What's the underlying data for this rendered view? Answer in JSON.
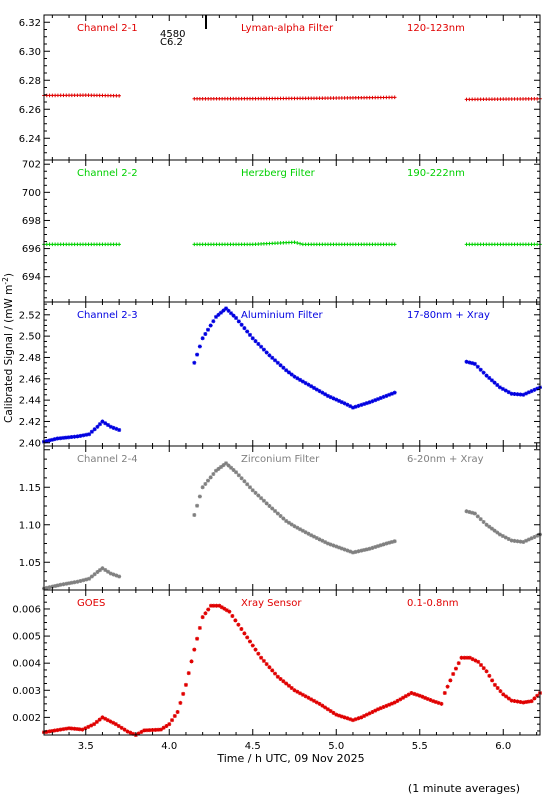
{
  "figure": {
    "ylabel": "Calibrated Signal / (mW m",
    "ylabel_sup": "-2",
    "ylabel_close": ")",
    "xlabel": "Time / h UTC, 09 Nov 2025",
    "footnote": "(1 minute averages)",
    "x_ticks": [
      "3.5",
      "4.0",
      "4.5",
      "5.0",
      "5.5",
      "6.0"
    ],
    "event": {
      "time": 4.22,
      "number": "4580",
      "class": "C6.2"
    }
  },
  "chart_data": [
    {
      "type": "scatter",
      "labels": [
        "Channel 2-1",
        "Lyman-alpha Filter",
        "120-123nm"
      ],
      "color": "#e00000",
      "marker": "plus",
      "xlim": [
        3.25,
        6.22
      ],
      "ylim": [
        6.225,
        6.325
      ],
      "y_ticks": [
        6.24,
        6.26,
        6.28,
        6.3,
        6.32
      ],
      "y_tick_labels": [
        "6.24",
        "6.26",
        "6.28",
        "6.30",
        "6.32"
      ],
      "segments": [
        [
          [
            3.25,
            6.2695
          ],
          [
            3.5,
            6.2697
          ],
          [
            3.7,
            6.2693
          ]
        ],
        [
          [
            4.15,
            6.2672
          ],
          [
            4.5,
            6.2673
          ],
          [
            4.9,
            6.2676
          ],
          [
            5.35,
            6.2682
          ]
        ],
        [
          [
            5.78,
            6.2668
          ],
          [
            6.0,
            6.267
          ],
          [
            6.22,
            6.2672
          ]
        ]
      ]
    },
    {
      "type": "scatter",
      "labels": [
        "Channel 2-2",
        "Herzberg Filter",
        "190-222nm"
      ],
      "color": "#00d000",
      "marker": "plus",
      "xlim": [
        3.25,
        6.22
      ],
      "ylim": [
        692.2,
        702.3
      ],
      "y_ticks": [
        694,
        696,
        698,
        700,
        702
      ],
      "y_tick_labels": [
        "694",
        "696",
        "698",
        "700",
        "702"
      ],
      "segments": [
        [
          [
            3.25,
            696.3
          ],
          [
            3.7,
            696.3
          ]
        ],
        [
          [
            4.15,
            696.3
          ],
          [
            4.5,
            696.3
          ],
          [
            4.75,
            696.45
          ],
          [
            4.8,
            696.3
          ],
          [
            5.35,
            696.3
          ]
        ],
        [
          [
            5.78,
            696.3
          ],
          [
            6.22,
            696.3
          ]
        ]
      ]
    },
    {
      "type": "scatter",
      "labels": [
        "Channel 2-3",
        "Aluminium Filter",
        "17-80nm + Xray"
      ],
      "color": "#0000e0",
      "marker": "star",
      "xlim": [
        3.25,
        6.22
      ],
      "ylim": [
        2.397,
        2.532
      ],
      "y_ticks": [
        2.4,
        2.42,
        2.44,
        2.46,
        2.48,
        2.5,
        2.52
      ],
      "y_tick_labels": [
        "2.40",
        "2.42",
        "2.44",
        "2.46",
        "2.48",
        "2.50",
        "2.52"
      ],
      "segments": [
        [
          [
            3.25,
            2.401
          ],
          [
            3.33,
            2.404
          ],
          [
            3.45,
            2.406
          ],
          [
            3.52,
            2.408
          ],
          [
            3.57,
            2.415
          ],
          [
            3.6,
            2.42
          ],
          [
            3.65,
            2.415
          ],
          [
            3.7,
            2.412
          ]
        ],
        [
          [
            4.15,
            2.475
          ],
          [
            4.2,
            2.498
          ],
          [
            4.28,
            2.518
          ],
          [
            4.34,
            2.526
          ],
          [
            4.4,
            2.517
          ],
          [
            4.5,
            2.498
          ],
          [
            4.6,
            2.482
          ],
          [
            4.7,
            2.468
          ],
          [
            4.75,
            2.462
          ],
          [
            4.85,
            2.453
          ],
          [
            4.95,
            2.444
          ],
          [
            5.05,
            2.437
          ],
          [
            5.1,
            2.433
          ],
          [
            5.2,
            2.438
          ],
          [
            5.3,
            2.444
          ],
          [
            5.35,
            2.447
          ]
        ],
        [
          [
            5.78,
            2.476
          ],
          [
            5.83,
            2.474
          ],
          [
            5.9,
            2.463
          ],
          [
            5.98,
            2.452
          ],
          [
            6.05,
            2.446
          ],
          [
            6.12,
            2.445
          ],
          [
            6.22,
            2.452
          ]
        ]
      ]
    },
    {
      "type": "scatter",
      "labels": [
        "Channel 2-4",
        "Zirconium Filter",
        "6-20nm + Xray"
      ],
      "color": "#808080",
      "marker": "star",
      "xlim": [
        3.25,
        6.22
      ],
      "ylim": [
        1.013,
        1.205
      ],
      "y_ticks": [
        1.05,
        1.1,
        1.15
      ],
      "y_tick_labels": [
        "1.05",
        "1.10",
        "1.15"
      ],
      "segments": [
        [
          [
            3.25,
            1.015
          ],
          [
            3.35,
            1.02
          ],
          [
            3.45,
            1.024
          ],
          [
            3.52,
            1.028
          ],
          [
            3.57,
            1.037
          ],
          [
            3.6,
            1.042
          ],
          [
            3.65,
            1.035
          ],
          [
            3.7,
            1.031
          ]
        ],
        [
          [
            4.15,
            1.113
          ],
          [
            4.2,
            1.15
          ],
          [
            4.28,
            1.172
          ],
          [
            4.34,
            1.182
          ],
          [
            4.4,
            1.17
          ],
          [
            4.5,
            1.146
          ],
          [
            4.6,
            1.125
          ],
          [
            4.7,
            1.105
          ],
          [
            4.75,
            1.098
          ],
          [
            4.85,
            1.086
          ],
          [
            4.95,
            1.075
          ],
          [
            5.05,
            1.067
          ],
          [
            5.1,
            1.063
          ],
          [
            5.2,
            1.068
          ],
          [
            5.3,
            1.075
          ],
          [
            5.35,
            1.078
          ]
        ],
        [
          [
            5.78,
            1.118
          ],
          [
            5.83,
            1.115
          ],
          [
            5.9,
            1.1
          ],
          [
            5.98,
            1.087
          ],
          [
            6.05,
            1.079
          ],
          [
            6.12,
            1.077
          ],
          [
            6.22,
            1.087
          ]
        ]
      ]
    },
    {
      "type": "scatter",
      "labels": [
        "GOES",
        "Xray Sensor",
        "0.1-0.8nm"
      ],
      "color": "#e00000",
      "marker": "star",
      "xlim": [
        3.25,
        6.22
      ],
      "ylim": [
        0.00135,
        0.0067
      ],
      "y_ticks": [
        0.002,
        0.003,
        0.004,
        0.005,
        0.006
      ],
      "y_tick_labels": [
        "0.002",
        "0.003",
        "0.004",
        "0.005",
        "0.006"
      ],
      "segments": [
        [
          [
            3.25,
            0.00145
          ],
          [
            3.33,
            0.00153
          ],
          [
            3.4,
            0.0016
          ],
          [
            3.48,
            0.00155
          ],
          [
            3.55,
            0.00175
          ],
          [
            3.6,
            0.002
          ],
          [
            3.68,
            0.00175
          ],
          [
            3.75,
            0.00148
          ],
          [
            3.8,
            0.00135
          ],
          [
            3.85,
            0.00152
          ],
          [
            3.95,
            0.00155
          ],
          [
            4.0,
            0.00175
          ],
          [
            4.05,
            0.0022
          ],
          [
            4.1,
            0.0032
          ],
          [
            4.15,
            0.0045
          ],
          [
            4.2,
            0.0057
          ],
          [
            4.25,
            0.00612
          ],
          [
            4.3,
            0.00612
          ],
          [
            4.36,
            0.0059
          ],
          [
            4.45,
            0.0051
          ],
          [
            4.55,
            0.0042
          ],
          [
            4.65,
            0.0035
          ],
          [
            4.75,
            0.003
          ],
          [
            4.9,
            0.0025
          ],
          [
            5.0,
            0.0021
          ],
          [
            5.05,
            0.002
          ],
          [
            5.1,
            0.0019
          ],
          [
            5.15,
            0.002
          ],
          [
            5.25,
            0.0023
          ],
          [
            5.35,
            0.00255
          ],
          [
            5.45,
            0.0029
          ],
          [
            5.5,
            0.0028
          ],
          [
            5.58,
            0.0026
          ],
          [
            5.63,
            0.0025
          ]
        ],
        [
          [
            5.65,
            0.0029
          ],
          [
            5.7,
            0.0036
          ],
          [
            5.75,
            0.0042
          ],
          [
            5.8,
            0.0042
          ],
          [
            5.85,
            0.00405
          ],
          [
            5.9,
            0.0037
          ],
          [
            5.95,
            0.0032
          ],
          [
            6.0,
            0.00285
          ],
          [
            6.05,
            0.00262
          ],
          [
            6.12,
            0.00255
          ],
          [
            6.17,
            0.0026
          ],
          [
            6.22,
            0.0029
          ]
        ]
      ]
    }
  ]
}
